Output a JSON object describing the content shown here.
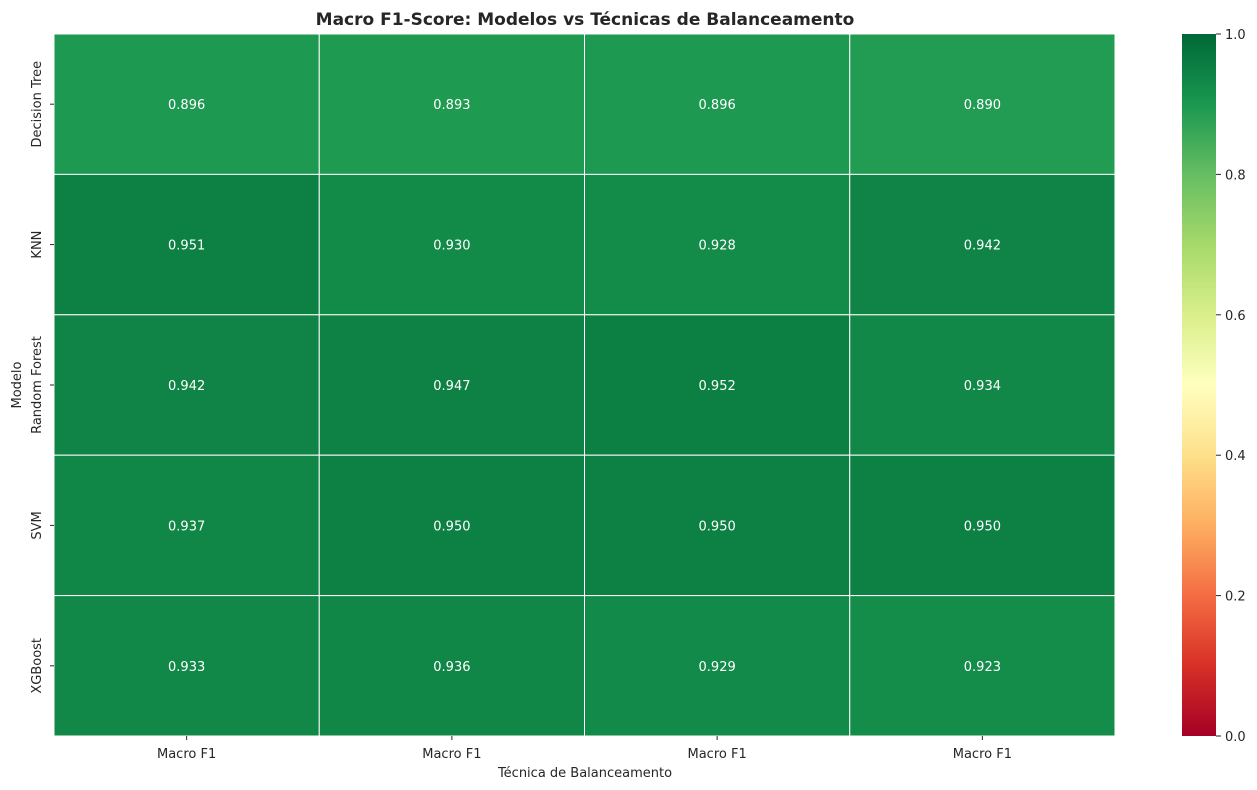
{
  "chart_data": {
    "type": "heatmap",
    "title": "Macro F1-Score: Modelos vs Técnicas de Balanceamento",
    "xlabel": "Técnica de Balanceamento",
    "ylabel": "Modelo",
    "x_categories": [
      "Macro F1",
      "Macro F1",
      "Macro F1",
      "Macro F1"
    ],
    "y_categories": [
      "Decision Tree",
      "KNN",
      "Random Forest",
      "SVM",
      "XGBoost"
    ],
    "values": [
      [
        0.896,
        0.893,
        0.896,
        0.89
      ],
      [
        0.951,
        0.93,
        0.928,
        0.942
      ],
      [
        0.942,
        0.947,
        0.952,
        0.934
      ],
      [
        0.937,
        0.95,
        0.95,
        0.95
      ],
      [
        0.933,
        0.936,
        0.929,
        0.923
      ]
    ],
    "value_labels": [
      [
        "0.896",
        "0.893",
        "0.896",
        "0.890"
      ],
      [
        "0.951",
        "0.930",
        "0.928",
        "0.942"
      ],
      [
        "0.942",
        "0.947",
        "0.952",
        "0.934"
      ],
      [
        "0.937",
        "0.950",
        "0.950",
        "0.950"
      ],
      [
        "0.933",
        "0.936",
        "0.929",
        "0.923"
      ]
    ],
    "colorscale": "RdYlGn",
    "vmin": 0,
    "vmax": 1,
    "colorbar_ticks": [
      "0.0",
      "0.2",
      "0.4",
      "0.6",
      "0.8",
      "1.0"
    ],
    "colors": {
      "cell_border": "#ffffff",
      "annotation_text": "#ffffff",
      "axis_text": "#262626",
      "title_text": "#262626"
    }
  }
}
